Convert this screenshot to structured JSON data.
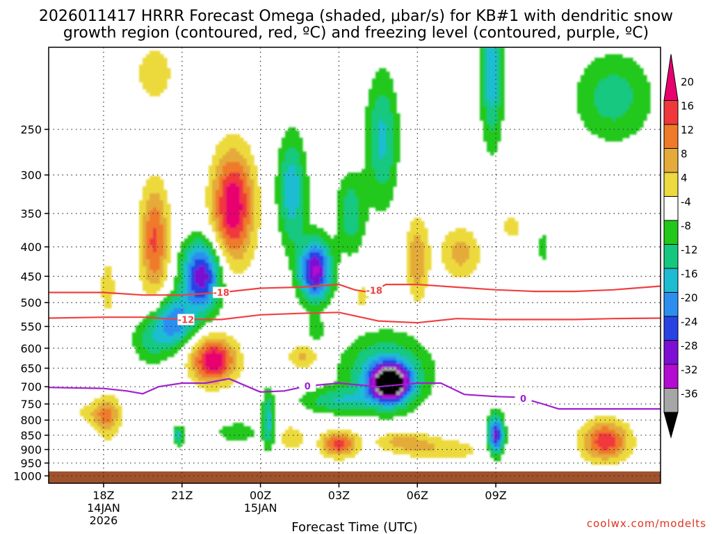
{
  "chart_data": {
    "type": "contour",
    "title_line1": "2026011417 HRRR Forecast Omega (shaded, μbar/s) for KB#1 with dendritic snow",
    "title_line2": "growth region (contoured, red, ºC) and freezing level (contoured, purple, ºC)",
    "xlabel": "Forecast Time (UTC)",
    "ylabel": "",
    "x_range_hours": [
      -0.7,
      7.1
    ],
    "y_range_hPa": [
      1030,
      180
    ],
    "y_ticks": [
      250,
      300,
      350,
      400,
      450,
      500,
      550,
      600,
      650,
      700,
      750,
      800,
      850,
      900,
      950,
      1000
    ],
    "x_ticks": [
      {
        "hour": 0,
        "label": "18Z",
        "sub1": "14JAN",
        "sub2": "2026"
      },
      {
        "hour": 1,
        "label": "21Z",
        "sub1": "",
        "sub2": ""
      },
      {
        "hour": 2,
        "label": "00Z",
        "sub1": "15JAN",
        "sub2": ""
      },
      {
        "hour": 3,
        "label": "03Z",
        "sub1": "",
        "sub2": ""
      },
      {
        "hour": 4,
        "label": "06Z",
        "sub1": "",
        "sub2": ""
      },
      {
        "hour": 5,
        "label": "09Z",
        "sub1": "",
        "sub2": ""
      }
    ],
    "colorbar": {
      "units": "μbar/s",
      "labels": [
        "20",
        "16",
        "12",
        "8",
        "4",
        "-4",
        "-8",
        "-12",
        "-16",
        "-20",
        "-24",
        "-28",
        "-32",
        "-36"
      ],
      "bins": [
        {
          "range": ">20",
          "color": "#e8006e"
        },
        {
          "range": "16 to 20",
          "color": "#f0383c"
        },
        {
          "range": "12 to 16",
          "color": "#ef7a2a"
        },
        {
          "range": "8 to 12",
          "color": "#e4ab3a"
        },
        {
          "range": "4 to 8",
          "color": "#ecda3e"
        },
        {
          "range": "-4 to 4",
          "color": "#ffffff"
        },
        {
          "range": "-8 to -4",
          "color": "#22c81a"
        },
        {
          "range": "-12 to -8",
          "color": "#15c880"
        },
        {
          "range": "-16 to -12",
          "color": "#1dbcd2"
        },
        {
          "range": "-20 to -16",
          "color": "#2c8ff0"
        },
        {
          "range": "-24 to -20",
          "color": "#2842e4"
        },
        {
          "range": "-28 to -24",
          "color": "#7d0ed4"
        },
        {
          "range": "-32 to -28",
          "color": "#b30cd2"
        },
        {
          "range": "-36 to -32",
          "color": "#a6a6a6"
        },
        {
          "range": "<-36",
          "color": "#000000"
        }
      ]
    },
    "omega_cores": [
      {
        "name": "upper-positive-center",
        "hour": 1.65,
        "pressure": 340,
        "peak": 22
      },
      {
        "name": "low-positive-center",
        "hour": 1.4,
        "pressure": 630,
        "peak": 22
      },
      {
        "name": "positive-2030z",
        "hour": 0.65,
        "pressure": 390,
        "peak": 17
      },
      {
        "name": "negative-2130z",
        "hour": 1.25,
        "pressure": 450,
        "peak": -26
      },
      {
        "name": "negative-0130z",
        "hour": 2.7,
        "pressure": 440,
        "peak": -28
      },
      {
        "name": "negative-core-0500z",
        "hour": 3.65,
        "pressure": 690,
        "peak": -38
      },
      {
        "name": "negative-0900z",
        "hour": 5.0,
        "pressure": 850,
        "peak": -25
      },
      {
        "name": "positive-0300z-low",
        "hour": 3.05,
        "pressure": 890,
        "peak": 18
      },
      {
        "name": "positive-1030z-low",
        "hour": 6.5,
        "pressure": 880,
        "peak": 18
      }
    ],
    "series": [
      {
        "name": "-18C isotherm",
        "label": "-18",
        "color": "#f04040",
        "x": [
          -0.7,
          0.0,
          0.5,
          1.0,
          1.5,
          2.0,
          2.5,
          3.0,
          3.2,
          3.4,
          3.6,
          4.0,
          4.5,
          5.0,
          5.5,
          6.0,
          6.5,
          7.1
        ],
        "y": [
          480,
          480,
          485,
          485,
          480,
          472,
          470,
          465,
          475,
          480,
          465,
          465,
          470,
          475,
          478,
          478,
          475,
          468
        ]
      },
      {
        "name": "-12C isotherm",
        "label": "-12",
        "color": "#f04040",
        "x": [
          -0.7,
          0.0,
          0.5,
          1.0,
          1.5,
          2.0,
          2.5,
          3.0,
          3.5,
          4.0,
          4.5,
          5.0,
          5.5,
          6.0,
          6.5,
          7.1
        ],
        "y": [
          532,
          530,
          530,
          535,
          535,
          525,
          522,
          520,
          538,
          542,
          533,
          535,
          535,
          535,
          533,
          532
        ]
      },
      {
        "name": "0C freezing level",
        "label": "0",
        "color": "#a020d0",
        "x": [
          -0.7,
          0.0,
          0.3,
          0.5,
          0.7,
          1.0,
          1.3,
          1.6,
          2.0,
          2.3,
          2.6,
          3.0,
          3.5,
          4.0,
          4.3,
          4.6,
          5.0,
          5.3,
          5.6,
          5.8,
          7.1
        ],
        "y": [
          702,
          705,
          712,
          720,
          700,
          690,
          690,
          678,
          715,
          712,
          698,
          690,
          700,
          690,
          690,
          722,
          728,
          730,
          750,
          765,
          765
        ]
      }
    ]
  },
  "credit": "coolwx.com/modelts"
}
